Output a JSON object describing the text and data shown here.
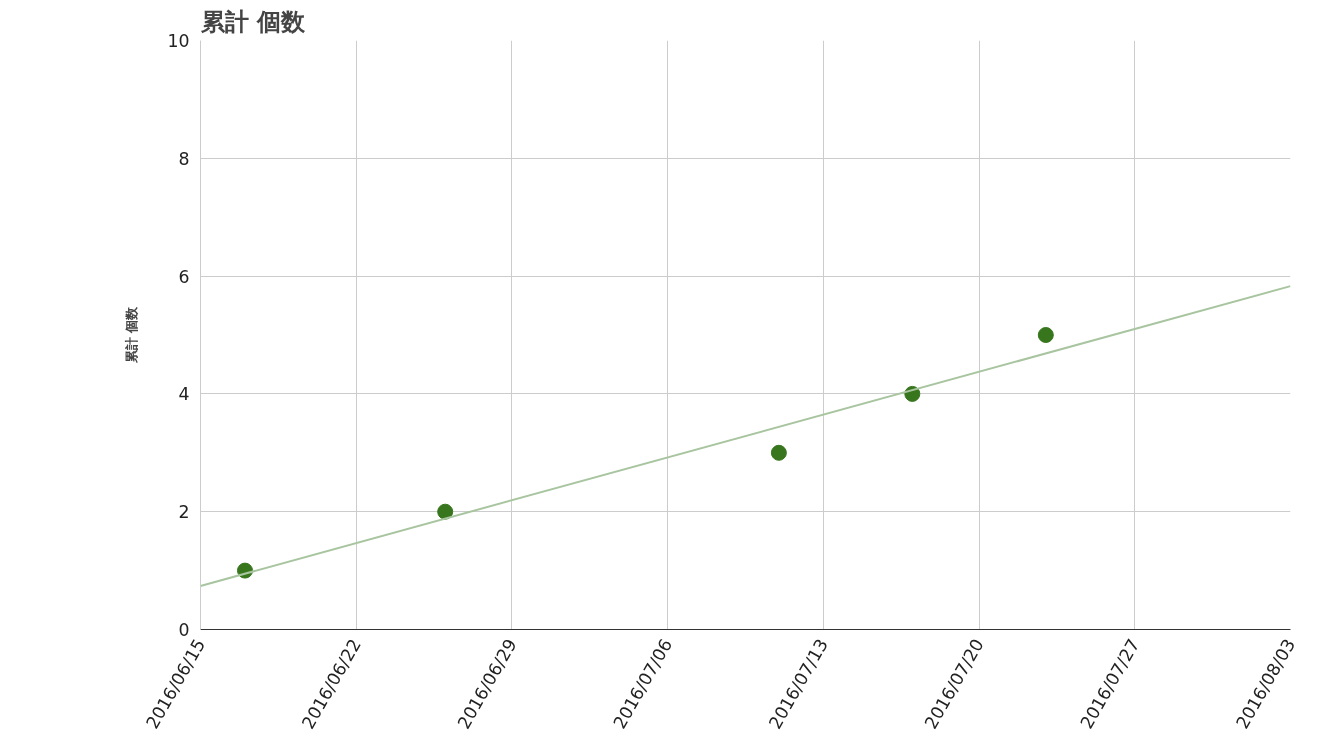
{
  "chart_data": {
    "type": "scatter",
    "title": "累計 個数",
    "ylabel": "累計 個数",
    "xlim": [
      "2016-06-15",
      "2016-08-03"
    ],
    "xticks": [
      {
        "value": "2016-06-15",
        "label": "2016/06/15"
      },
      {
        "value": "2016-06-22",
        "label": "2016/06/22"
      },
      {
        "value": "2016-06-29",
        "label": "2016/06/29"
      },
      {
        "value": "2016-07-06",
        "label": "2016/07/06"
      },
      {
        "value": "2016-07-13",
        "label": "2016/07/13"
      },
      {
        "value": "2016-07-20",
        "label": "2016/07/20"
      },
      {
        "value": "2016-07-27",
        "label": "2016/07/27"
      },
      {
        "value": "2016-08-03",
        "label": "2016/08/03"
      }
    ],
    "ylim": [
      0,
      10
    ],
    "yticks": [
      0,
      2,
      4,
      6,
      8,
      10
    ],
    "grid": true,
    "series": [
      {
        "marker": "circle",
        "color": "#38761d",
        "x": [
          "2016-06-17",
          "2016-06-26",
          "2016-07-11",
          "2016-07-17",
          "2016-07-23"
        ],
        "values": [
          1,
          2,
          3,
          4,
          5
        ]
      },
      {
        "type": "line",
        "marker": "none",
        "color": "#a8c5a0",
        "x": [
          "2016-06-15",
          "2016-08-03"
        ],
        "values": [
          0.74,
          5.83
        ]
      }
    ]
  }
}
